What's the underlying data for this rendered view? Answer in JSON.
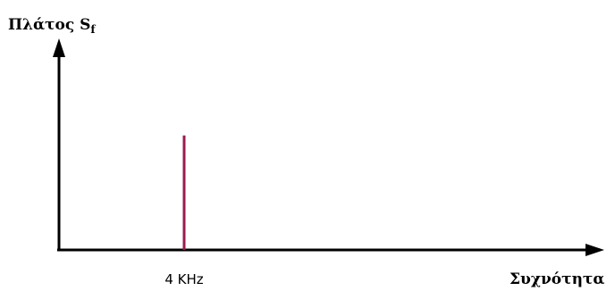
{
  "chart_data": {
    "type": "bar",
    "ylabel": "Πλάτος S",
    "ylabel_subscript": "f",
    "xlabel": "Συχνότητα",
    "categories": [
      "4 KHz"
    ],
    "values": [
      1
    ],
    "ylim": [
      0,
      1.7
    ],
    "grid": false,
    "legend": "none",
    "colors": {
      "bar": "#9b1b4f",
      "axis": "#000000"
    }
  }
}
